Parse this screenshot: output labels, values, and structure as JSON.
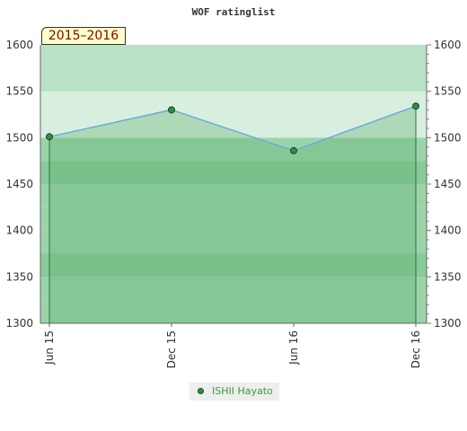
{
  "chart_data": {
    "type": "line",
    "title": "WOF ratinglist",
    "subtitle": "2015–2016",
    "x": [
      "Jun 15",
      "Dec 15",
      "Jun 16",
      "Dec 16"
    ],
    "series": [
      {
        "name": "ISHII Hayato",
        "values": [
          1501,
          1530,
          1486,
          1534
        ]
      }
    ],
    "ylim": [
      1300,
      1600
    ],
    "yticks": [
      "1300",
      "1350",
      "1400",
      "1450",
      "1500",
      "1550",
      "1600"
    ],
    "xlabel": "",
    "ylabel": "",
    "grid": false,
    "legend": "bottom-center",
    "colors": {
      "line": "#6fa8dc",
      "fill": "#5fb36f",
      "marker": "#2e8b57",
      "band_dark": "#7cc48f",
      "band_mid": "#92cfa2",
      "band_light": "#b3dec0",
      "band_pale": "#d5ecdc"
    }
  }
}
